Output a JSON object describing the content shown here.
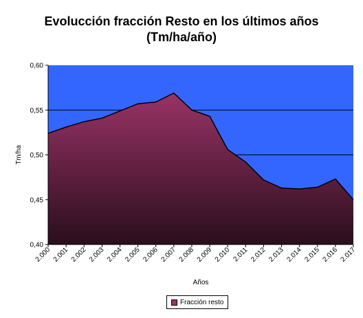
{
  "chart_data": {
    "type": "area",
    "title": [
      "Evolucción fracción Resto en los últimos años",
      "(Tm/ha/año)"
    ],
    "xlabel": "Años",
    "ylabel": "Tm/ha",
    "categories": [
      "2.000",
      "2.001",
      "2.002",
      "2.003",
      "2.004",
      "2.005",
      "2.006",
      "2.007",
      "2.008",
      "2.009",
      "2.010",
      "2.011",
      "2.012",
      "2.013",
      "2.014",
      "2.015",
      "2.016",
      "2.017"
    ],
    "series": [
      {
        "name": "Fracción resto",
        "values": [
          0.524,
          0.531,
          0.537,
          0.541,
          0.549,
          0.557,
          0.559,
          0.569,
          0.55,
          0.543,
          0.506,
          0.492,
          0.472,
          0.463,
          0.462,
          0.464,
          0.473,
          0.45
        ]
      }
    ],
    "ylim": [
      0.4,
      0.6
    ],
    "yticks": [
      "0,40",
      "0,45",
      "0,50",
      "0,55",
      "0,60"
    ],
    "ytick_values": [
      0.4,
      0.45,
      0.5,
      0.55,
      0.6
    ],
    "gridlines": [
      0.5,
      0.55
    ],
    "legend_position": "bottom",
    "colors": {
      "plot_background": "#3366ff",
      "area_top": "#993366",
      "area_bottom": "#2a0e1d",
      "outline": "#000000"
    }
  }
}
